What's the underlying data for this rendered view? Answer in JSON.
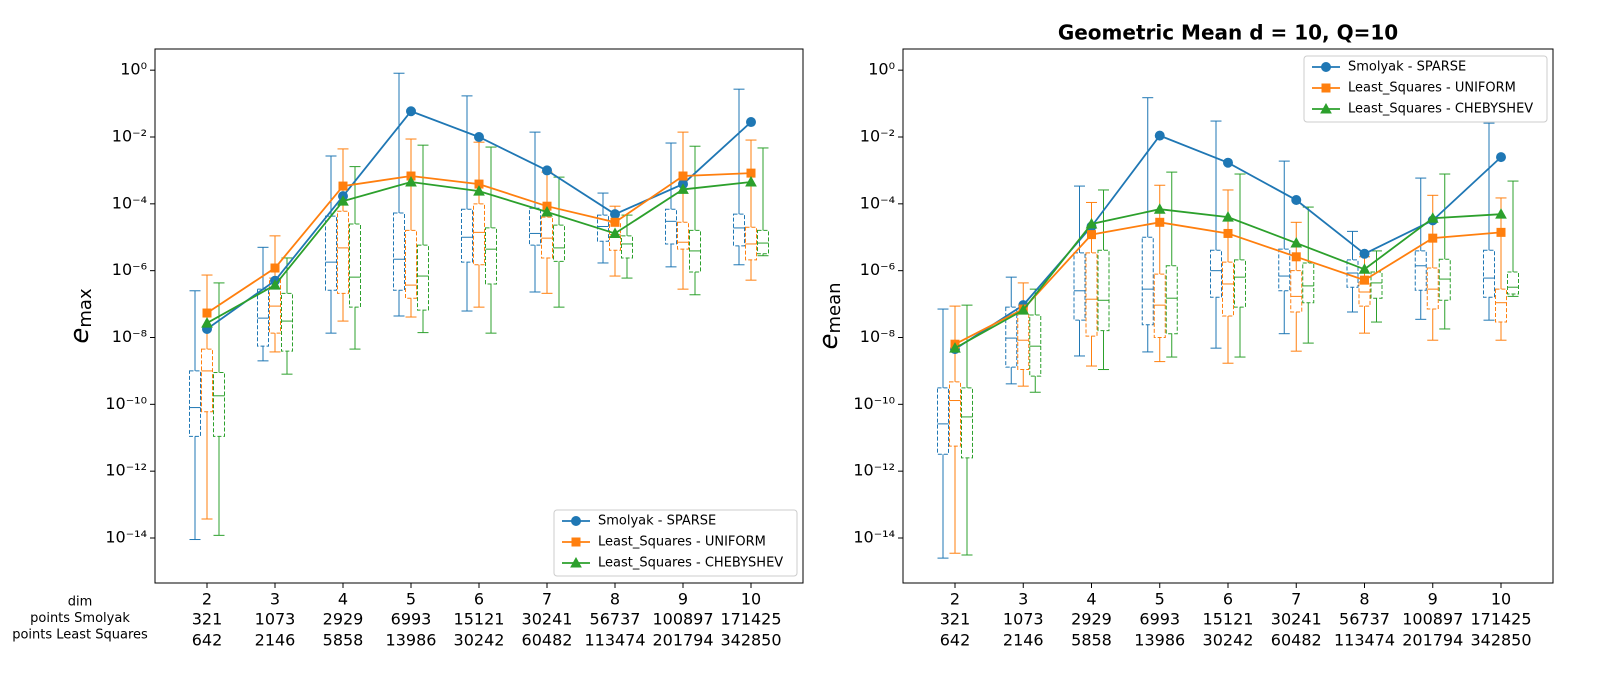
{
  "chart_data": [
    {
      "type": "boxplot",
      "ylabel": "e",
      "ylabel_sub": "max",
      "log": true,
      "legend": "lower right",
      "row_labels": [
        "dim",
        "points Smolyak",
        "points Least Squares"
      ],
      "categories": [
        2,
        3,
        4,
        5,
        6,
        7,
        8,
        9,
        10
      ],
      "points_smolyak": [
        321,
        1073,
        2929,
        6993,
        15121,
        30241,
        56737,
        100897,
        171425
      ],
      "points_least_squares": [
        642,
        2146,
        5858,
        13986,
        30242,
        60482,
        113474,
        201794,
        342850
      ],
      "ylim": [
        4.5e-16,
        4.3
      ],
      "yticks": [
        {
          "value": 1,
          "label": "10⁰"
        },
        {
          "value": 0.01,
          "label": "10⁻²"
        },
        {
          "value": 0.0001,
          "label": "10⁻⁴"
        },
        {
          "value": 1e-06,
          "label": "10⁻⁶"
        },
        {
          "value": 1e-08,
          "label": "10⁻⁸"
        },
        {
          "value": 1e-10,
          "label": "10⁻¹⁰"
        },
        {
          "value": 1e-12,
          "label": "10⁻¹²"
        },
        {
          "value": 1e-14,
          "label": "10⁻¹⁴"
        }
      ],
      "series": [
        {
          "name": "Smolyak - SPARSE",
          "color": "#1f77b4",
          "marker": "circle",
          "values": [
            1.8e-08,
            5e-07,
            0.00017,
            0.059,
            0.01,
            0.001,
            4.9e-05,
            0.00039,
            0.028
          ],
          "whislo": [
            9e-15,
            2e-09,
            1.35e-08,
            4.4e-08,
            6.2e-08,
            2.3e-07,
            1.7e-06,
            1.3e-06,
            1.5e-06
          ],
          "q1": [
            1.1e-11,
            5.5e-09,
            2.6e-07,
            2.6e-07,
            1.8e-06,
            5.8e-06,
            7.6e-06,
            6.3e-06,
            5.5e-06
          ],
          "med": [
            8e-11,
            3.8e-08,
            1.8e-06,
            2.2e-06,
            1e-05,
            1.3e-05,
            2.1e-05,
            3e-05,
            1.9e-05
          ],
          "q3": [
            1e-09,
            2.8e-07,
            4.3e-05,
            5.3e-05,
            6.9e-05,
            7.4e-05,
            4.6e-05,
            6.9e-05,
            4.9e-05
          ],
          "whishi": [
            2.5e-07,
            5e-06,
            0.0027,
            0.81,
            0.17,
            0.014,
            0.00021,
            0.0066,
            0.27
          ]
        },
        {
          "name": "Least_Squares - UNIFORM",
          "color": "#ff7f0e",
          "marker": "square",
          "values": [
            5.4e-08,
            1.2e-06,
            0.00034,
            0.00068,
            0.00039,
            8.5e-05,
            2.8e-05,
            0.00068,
            0.00083
          ],
          "whislo": [
            3.7e-14,
            3.7e-09,
            3.1e-08,
            4.1e-08,
            8.1e-08,
            2.1e-07,
            6.9e-07,
            2.8e-07,
            5.2e-07
          ],
          "q1": [
            6e-11,
            1.35e-08,
            2.1e-07,
            1.5e-07,
            1.5e-06,
            2.4e-06,
            4.1e-06,
            4.4e-06,
            2.1e-06
          ],
          "med": [
            1e-09,
            8.7e-08,
            4.8e-06,
            3.7e-07,
            1.4e-05,
            9.4e-06,
            1.2e-05,
            7.1e-06,
            6.3e-06
          ],
          "q3": [
            4.5e-09,
            6e-07,
            6e-05,
            1.6e-05,
            0.0001,
            4e-05,
            2.8e-05,
            2.8e-05,
            2e-05
          ],
          "whishi": [
            7.4e-07,
            1.1e-05,
            0.0044,
            0.0087,
            0.007,
            0.00089,
            8.5e-05,
            0.014,
            0.0081
          ]
        },
        {
          "name": "Least_Squares - CHEBYSHEV",
          "color": "#2ca02c",
          "marker": "triangle",
          "values": [
            2.7e-08,
            3.7e-07,
            0.00012,
            0.00045,
            0.00024,
            5.7e-05,
            1.3e-05,
            0.00027,
            0.00045
          ],
          "whislo": [
            1.2e-14,
            8e-10,
            4.5e-09,
            1.4e-08,
            1.35e-08,
            8.1e-08,
            6e-07,
            1.9e-07,
            2.8e-06
          ],
          "q1": [
            1.1e-11,
            3.9e-09,
            8.1e-08,
            6.6e-08,
            4e-07,
            1.9e-06,
            2.4e-06,
            9.1e-07,
            3.2e-06
          ],
          "med": [
            1.8e-10,
            3.1e-08,
            6.4e-07,
            6.9e-07,
            4.4e-06,
            4.8e-06,
            6.3e-06,
            3.9e-06,
            6.7e-06
          ],
          "q3": [
            9e-10,
            2.1e-07,
            2.5e-05,
            5.8e-06,
            1.9e-05,
            2.3e-05,
            1.1e-05,
            1.6e-05,
            1.6e-05
          ],
          "whishi": [
            4.3e-07,
            2.4e-06,
            0.0013,
            0.0057,
            0.005,
            0.00063,
            4.6e-05,
            0.0053,
            0.0047
          ]
        }
      ]
    },
    {
      "type": "boxplot",
      "title": "Geometric Mean d = 10, Q=10",
      "ylabel": "e",
      "ylabel_sub": "mean",
      "log": true,
      "legend": "upper right",
      "categories": [
        2,
        3,
        4,
        5,
        6,
        7,
        8,
        9,
        10
      ],
      "points_smolyak": [
        321,
        1073,
        2929,
        6993,
        15121,
        30241,
        56737,
        100897,
        171425
      ],
      "points_least_squares": [
        642,
        2146,
        5858,
        13986,
        30242,
        60482,
        113474,
        201794,
        342850
      ],
      "ylim": [
        4.5e-16,
        4.3
      ],
      "yticks": [
        {
          "value": 1,
          "label": "10⁰"
        },
        {
          "value": 0.01,
          "label": "10⁻²"
        },
        {
          "value": 0.0001,
          "label": "10⁻⁴"
        },
        {
          "value": 1e-06,
          "label": "10⁻⁶"
        },
        {
          "value": 1e-08,
          "label": "10⁻⁸"
        },
        {
          "value": 1e-10,
          "label": "10⁻¹⁰"
        },
        {
          "value": 1e-12,
          "label": "10⁻¹²"
        },
        {
          "value": 1e-14,
          "label": "10⁻¹⁴"
        }
      ],
      "series": [
        {
          "name": "Smolyak - SPARSE",
          "color": "#1f77b4",
          "marker": "circle",
          "values": [
            4.5e-09,
            9.3e-08,
            2.1e-05,
            0.011,
            0.0017,
            0.00013,
            3.2e-06,
            3.2e-05,
            0.0025
          ],
          "whislo": [
            2.5e-15,
            4.1e-10,
            2.8e-09,
            3.7e-09,
            4.8e-09,
            1.3e-08,
            5.8e-08,
            3.5e-08,
            3.3e-08
          ],
          "q1": [
            3.2e-12,
            1.3e-09,
            3.3e-08,
            2.4e-08,
            1.6e-07,
            2.5e-07,
            3.2e-07,
            2.6e-07,
            1.6e-07
          ],
          "med": [
            2.6e-11,
            9.6e-09,
            2.5e-07,
            2.8e-07,
            1e-06,
            6.9e-07,
            8.5e-07,
            1.4e-06,
            6e-07
          ],
          "q3": [
            3.1e-10,
            8.1e-08,
            3.4e-06,
            1e-05,
            4.1e-06,
            4.4e-06,
            2.1e-06,
            3.9e-06,
            4.1e-06
          ],
          "whishi": [
            7.1e-08,
            6.4e-07,
            0.00034,
            0.15,
            0.03,
            0.0019,
            1.5e-05,
            0.00059,
            0.026
          ]
        },
        {
          "name": "Least_Squares - UNIFORM",
          "color": "#ff7f0e",
          "marker": "square",
          "values": [
            6.3e-09,
            7.1e-08,
            1.2e-05,
            2.8e-05,
            1.3e-05,
            2.6e-06,
            5.2e-07,
            9.4e-06,
            1.4e-05
          ],
          "whislo": [
            3.5e-15,
            3.5e-10,
            1.4e-09,
            1.9e-09,
            1.7e-09,
            3.9e-09,
            1.35e-08,
            8.3e-09,
            8.3e-09
          ],
          "q1": [
            5.6e-12,
            1.1e-09,
            1.1e-08,
            1e-08,
            4.4e-08,
            5.8e-08,
            8.7e-08,
            7.1e-08,
            2.9e-08
          ],
          "med": [
            1.3e-10,
            8.3e-09,
            1.4e-07,
            9.3e-08,
            4e-07,
            1.7e-07,
            2.3e-07,
            2.8e-07,
            1.1e-07
          ],
          "q3": [
            4.7e-10,
            5.4e-08,
            3.4e-06,
            7.9e-07,
            1.8e-06,
            1e-06,
            4.6e-07,
            1.2e-06,
            2.8e-07
          ],
          "whishi": [
            8.7e-08,
            4.3e-07,
            0.00011,
            0.00036,
            0.00026,
            2.8e-05,
            2.6e-06,
            0.00018,
            0.00015
          ]
        },
        {
          "name": "Least_Squares - CHEBYSHEV",
          "color": "#2ca02c",
          "marker": "triangle",
          "values": [
            4.8e-09,
            6.6e-08,
            2.5e-05,
            6.9e-05,
            4e-05,
            6.7e-06,
            1.1e-06,
            3.7e-05,
            4.9e-05
          ],
          "whislo": [
            3.1e-15,
            2.3e-10,
            1.1e-09,
            2.6e-09,
            2.6e-09,
            6.8e-09,
            2.9e-08,
            1.8e-08,
            1.7e-07
          ],
          "q1": [
            2.5e-12,
            7e-10,
            1.6e-08,
            1.3e-08,
            8.1e-08,
            1.1e-07,
            1.5e-07,
            1.3e-07,
            2e-07
          ],
          "med": [
            4.2e-11,
            5.5e-09,
            1.3e-07,
            1.5e-07,
            6.4e-07,
            3.5e-07,
            4.3e-07,
            5.6e-07,
            3.2e-07
          ],
          "q3": [
            3.1e-10,
            4.7e-08,
            4.1e-06,
            1.4e-06,
            2.1e-06,
            1.7e-06,
            9.1e-07,
            2.2e-06,
            9.1e-07
          ],
          "whishi": [
            9.3e-08,
            2.8e-07,
            0.00026,
            0.00089,
            0.00078,
            8e-05,
            3.9e-06,
            0.00078,
            0.00048
          ]
        }
      ]
    }
  ]
}
